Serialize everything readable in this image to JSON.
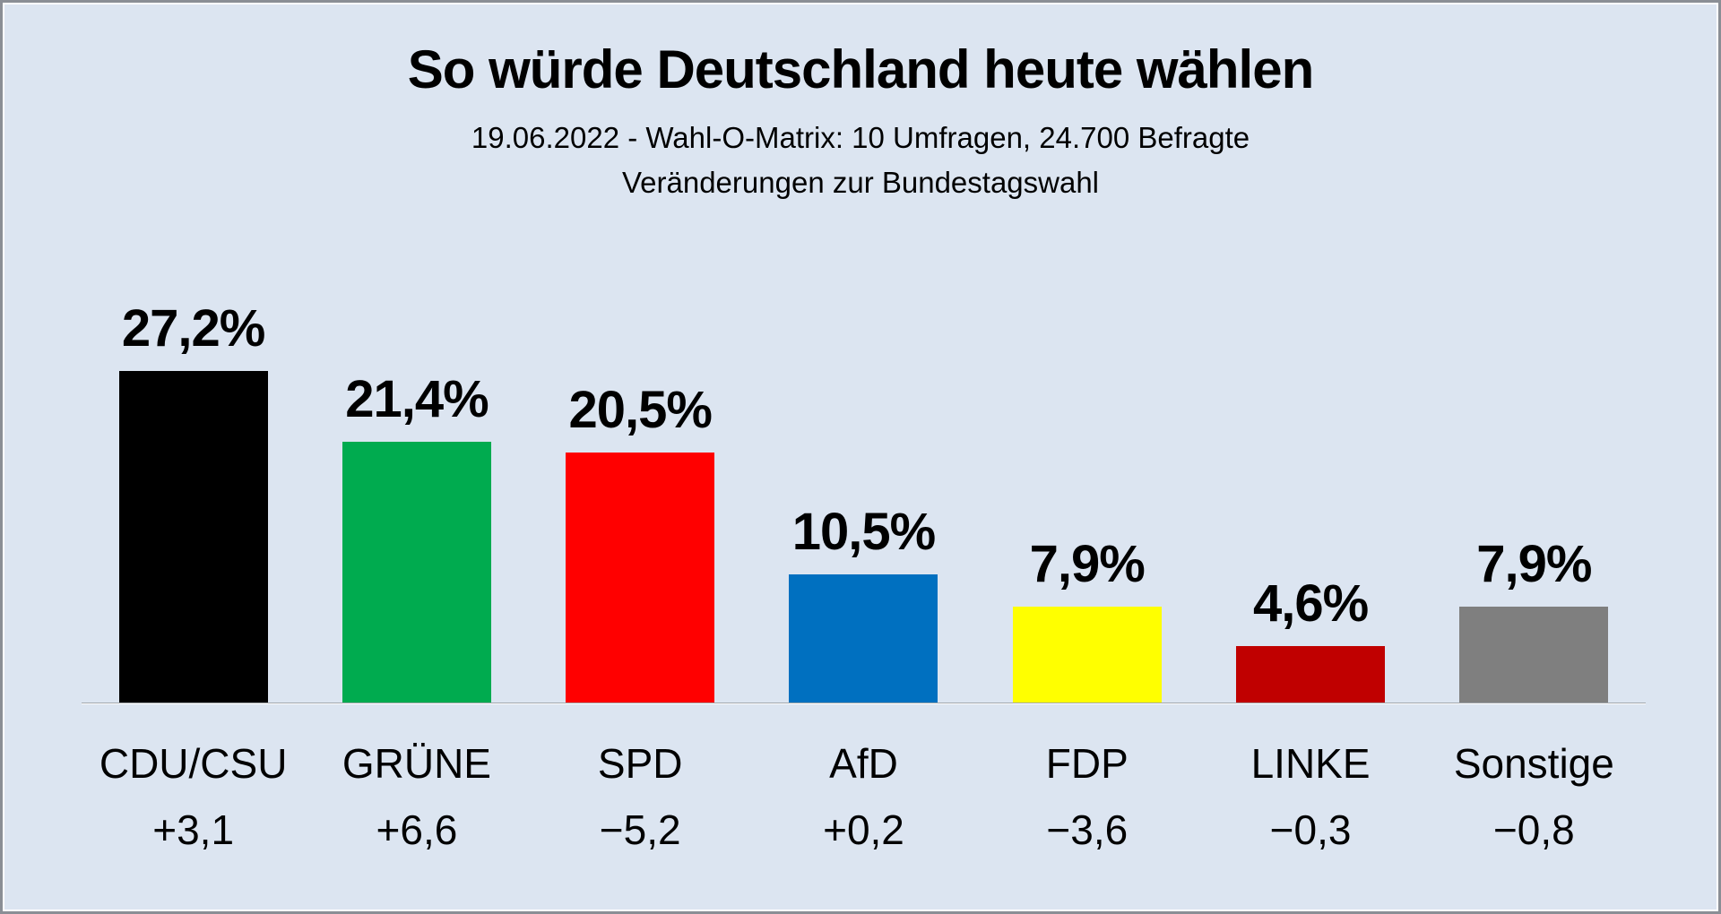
{
  "title": "So würde Deutschland heute wählen",
  "subtitle_line1": "19.06.2022 - Wahl-O-Matrix: 10 Umfragen, 24.700 Befragte",
  "subtitle_line2": "Veränderungen zur Bundestagswahl",
  "colors": {
    "background": "#DCE5F1",
    "frame_outer": "#8a8e95",
    "frame_inner": "#ffffff",
    "axis_line": "#a0a6ac",
    "text": "#000000"
  },
  "chart_data": {
    "type": "bar",
    "title": "So würde Deutschland heute wählen",
    "subtitle": "19.06.2022 - Wahl-O-Matrix: 10 Umfragen, 24.700 Befragte",
    "note": "Veränderungen zur Bundestagswahl",
    "unit": "%",
    "ylim": [
      0,
      30
    ],
    "grid": false,
    "legend": false,
    "categories": [
      "CDU/CSU",
      "GRÜNE",
      "SPD",
      "AfD",
      "FDP",
      "LINKE",
      "Sonstige"
    ],
    "values": [
      27.2,
      21.4,
      20.5,
      10.5,
      7.9,
      4.6,
      7.9
    ],
    "value_labels": [
      "27,2%",
      "21,4%",
      "20,5%",
      "10,5%",
      "7,9%",
      "4,6%",
      "7,9%"
    ],
    "changes": [
      "+3,1",
      "+6,6",
      "−5,2",
      "+0,2",
      "−3,6",
      "−0,3",
      "−0,8"
    ],
    "bar_colors": [
      "#000000",
      "#00AB4F",
      "#FF0000",
      "#0070C0",
      "#FFFF00",
      "#C00000",
      "#7F7F7F"
    ]
  }
}
